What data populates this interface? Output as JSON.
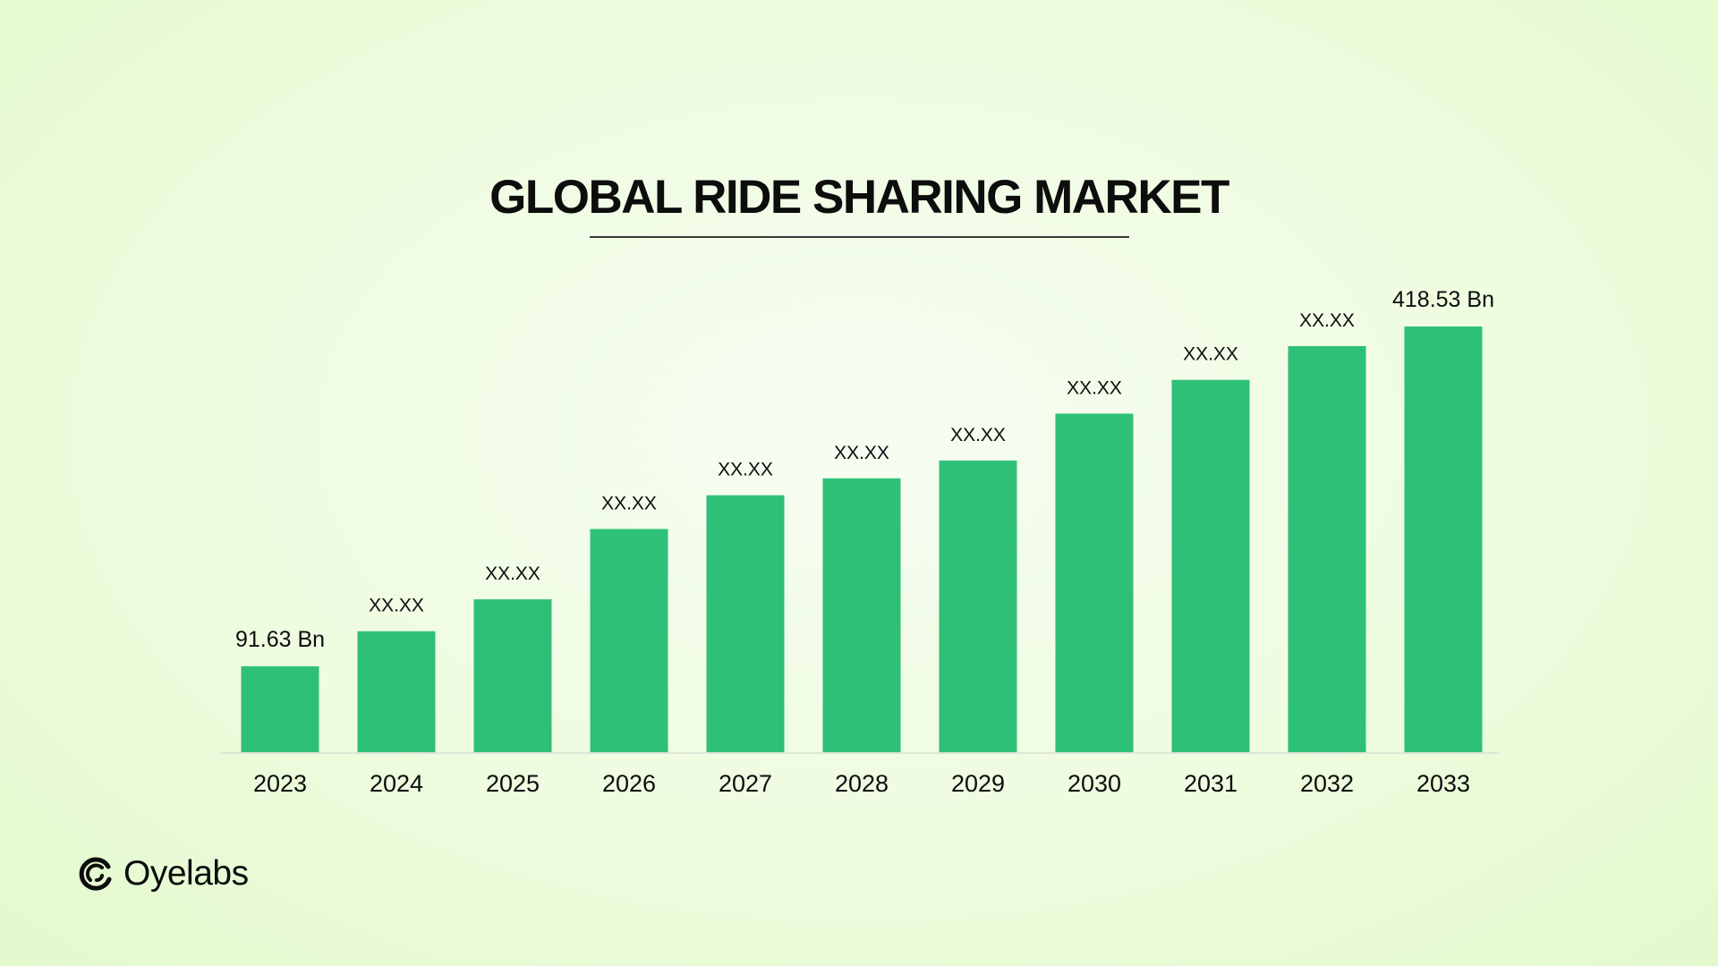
{
  "title": "GLOBAL RIDE SHARING MARKET",
  "brand": {
    "name": "Oyelabs",
    "icon": "oyelabs-logo-icon"
  },
  "colors": {
    "bar": "#2ec077",
    "text": "#0d0d0d",
    "axis": "#d8dfd2"
  },
  "chart_data": {
    "type": "bar",
    "categories": [
      "2023",
      "2024",
      "2025",
      "2026",
      "2027",
      "2028",
      "2029",
      "2030",
      "2031",
      "2032",
      "2033"
    ],
    "values": [
      91.63,
      129,
      163,
      238,
      274,
      292,
      311,
      361,
      397,
      433,
      418.53
    ],
    "data_labels": [
      "91.63 Bn",
      "XX.XX",
      "XX.XX",
      "XX.XX",
      "XX.XX",
      "XX.XX",
      "XX.XX",
      "XX.XX",
      "XX.XX",
      "XX.XX",
      "418.53 Bn"
    ],
    "title": "GLOBAL RIDE SHARING MARKET",
    "xlabel": "",
    "ylabel": "",
    "ylim": [
      0,
      460
    ],
    "grid": false,
    "legend": "none"
  }
}
